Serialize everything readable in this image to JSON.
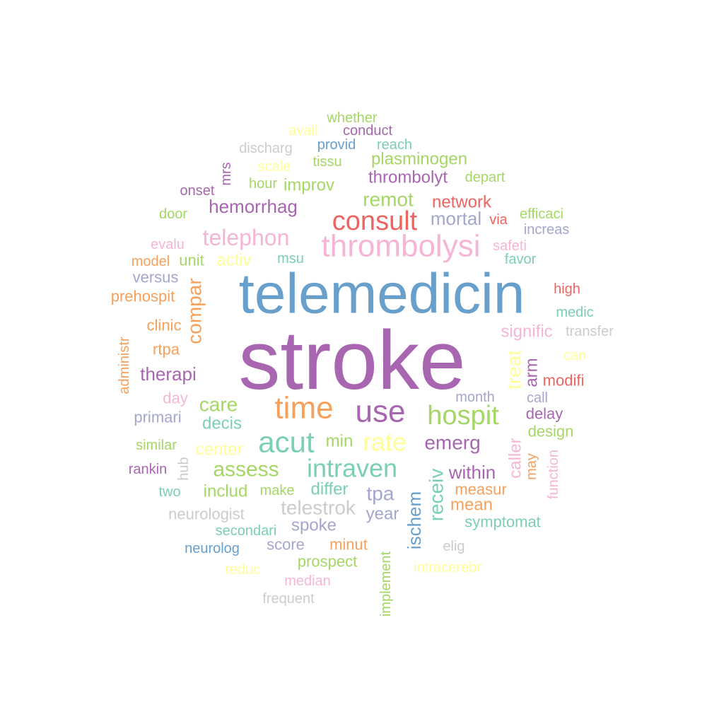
{
  "palette": {
    "purple": "#a865b0",
    "blue": "#689fcb",
    "pink": "#f5b6d5",
    "red": "#ef6461",
    "green": "#a4d765",
    "orange": "#f6a15b",
    "teal": "#7bcfb2",
    "lavender": "#a6a6cd",
    "gray": "#cccccc",
    "yellow": "#ffff99"
  },
  "words": [
    {
      "text": "stroke",
      "color": "purple"
    },
    {
      "text": "telemedicin",
      "color": "blue"
    },
    {
      "text": "thrombolysi",
      "color": "pink"
    },
    {
      "text": "consult",
      "color": "red"
    },
    {
      "text": "telephon",
      "color": "pink"
    },
    {
      "text": "time",
      "color": "orange"
    },
    {
      "text": "use",
      "color": "purple"
    },
    {
      "text": "hospit",
      "color": "green"
    },
    {
      "text": "acut",
      "color": "teal"
    },
    {
      "text": "rate",
      "color": "yellow"
    },
    {
      "text": "intraven",
      "color": "teal"
    },
    {
      "text": "assess",
      "color": "green"
    },
    {
      "text": "emerg",
      "color": "purple"
    },
    {
      "text": "remot",
      "color": "green"
    },
    {
      "text": "hemorrhag",
      "color": "purple"
    },
    {
      "text": "thrombolyt",
      "color": "purple"
    },
    {
      "text": "plasminogen",
      "color": "green"
    },
    {
      "text": "mortal",
      "color": "lavender"
    },
    {
      "text": "network",
      "color": "red"
    },
    {
      "text": "improv",
      "color": "green"
    },
    {
      "text": "hour",
      "color": "green"
    },
    {
      "text": "tissu",
      "color": "green"
    },
    {
      "text": "scale",
      "color": "yellow"
    },
    {
      "text": "discharg",
      "color": "gray"
    },
    {
      "text": "provid",
      "color": "blue"
    },
    {
      "text": "reach",
      "color": "teal"
    },
    {
      "text": "conduct",
      "color": "purple"
    },
    {
      "text": "avail",
      "color": "yellow"
    },
    {
      "text": "whether",
      "color": "green"
    },
    {
      "text": "depart",
      "color": "green"
    },
    {
      "text": "mrs",
      "color": "purple"
    },
    {
      "text": "onset",
      "color": "purple"
    },
    {
      "text": "door",
      "color": "green"
    },
    {
      "text": "evalu",
      "color": "pink"
    },
    {
      "text": "model",
      "color": "orange"
    },
    {
      "text": "unit",
      "color": "green"
    },
    {
      "text": "activ",
      "color": "yellow"
    },
    {
      "text": "msu",
      "color": "teal"
    },
    {
      "text": "versus",
      "color": "lavender"
    },
    {
      "text": "prehospit",
      "color": "orange"
    },
    {
      "text": "compar",
      "color": "orange"
    },
    {
      "text": "clinic",
      "color": "orange"
    },
    {
      "text": "rtpa",
      "color": "orange"
    },
    {
      "text": "administr",
      "color": "orange"
    },
    {
      "text": "therapi",
      "color": "purple"
    },
    {
      "text": "day",
      "color": "pink"
    },
    {
      "text": "care",
      "color": "green"
    },
    {
      "text": "decis",
      "color": "teal"
    },
    {
      "text": "primari",
      "color": "lavender"
    },
    {
      "text": "similar",
      "color": "green"
    },
    {
      "text": "center",
      "color": "yellow"
    },
    {
      "text": "min",
      "color": "green"
    },
    {
      "text": "rankin",
      "color": "purple"
    },
    {
      "text": "hub",
      "color": "gray"
    },
    {
      "text": "two",
      "color": "teal"
    },
    {
      "text": "includ",
      "color": "green"
    },
    {
      "text": "make",
      "color": "green"
    },
    {
      "text": "differ",
      "color": "teal"
    },
    {
      "text": "tpa",
      "color": "lavender"
    },
    {
      "text": "neurologist",
      "color": "gray"
    },
    {
      "text": "telestrok",
      "color": "gray"
    },
    {
      "text": "year",
      "color": "lavender"
    },
    {
      "text": "secondari",
      "color": "teal"
    },
    {
      "text": "spoke",
      "color": "lavender"
    },
    {
      "text": "neurolog",
      "color": "blue"
    },
    {
      "text": "score",
      "color": "lavender"
    },
    {
      "text": "minut",
      "color": "orange"
    },
    {
      "text": "prospect",
      "color": "green"
    },
    {
      "text": "reduc",
      "color": "yellow"
    },
    {
      "text": "median",
      "color": "pink"
    },
    {
      "text": "frequent",
      "color": "gray"
    },
    {
      "text": "implement",
      "color": "green"
    },
    {
      "text": "ischem",
      "color": "blue"
    },
    {
      "text": "receiv",
      "color": "teal"
    },
    {
      "text": "within",
      "color": "purple"
    },
    {
      "text": "measur",
      "color": "orange"
    },
    {
      "text": "mean",
      "color": "orange"
    },
    {
      "text": "symptomat",
      "color": "teal"
    },
    {
      "text": "elig",
      "color": "gray"
    },
    {
      "text": "intracerebr",
      "color": "yellow"
    },
    {
      "text": "caller",
      "color": "pink"
    },
    {
      "text": "may",
      "color": "orange"
    },
    {
      "text": "function",
      "color": "pink"
    },
    {
      "text": "design",
      "color": "green"
    },
    {
      "text": "delay",
      "color": "purple"
    },
    {
      "text": "call",
      "color": "lavender"
    },
    {
      "text": "month",
      "color": "lavender"
    },
    {
      "text": "treat",
      "color": "yellow"
    },
    {
      "text": "arm",
      "color": "purple"
    },
    {
      "text": "modifi",
      "color": "red"
    },
    {
      "text": "can",
      "color": "yellow"
    },
    {
      "text": "signific",
      "color": "pink"
    },
    {
      "text": "transfer",
      "color": "gray"
    },
    {
      "text": "medic",
      "color": "teal"
    },
    {
      "text": "high",
      "color": "red"
    },
    {
      "text": "favor",
      "color": "teal"
    },
    {
      "text": "safeti",
      "color": "pink"
    },
    {
      "text": "via",
      "color": "red"
    },
    {
      "text": "increas",
      "color": "lavender"
    },
    {
      "text": "efficaci",
      "color": "green"
    }
  ]
}
